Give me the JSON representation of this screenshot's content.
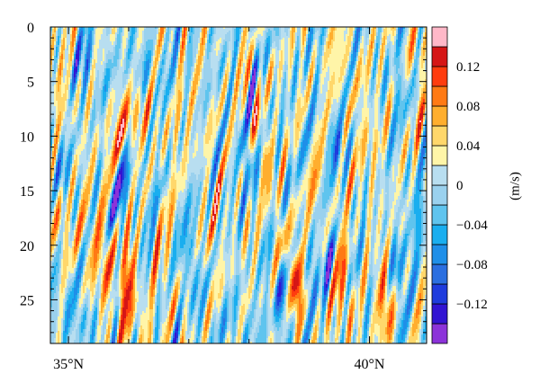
{
  "chart_data": {
    "type": "heatmap",
    "title": "",
    "xlabel": "",
    "ylabel": "",
    "y_inverted": true,
    "xlim": [
      34.7,
      40.95
    ],
    "ylim": [
      0,
      29
    ],
    "x_ticks": [
      {
        "value": 35,
        "label": "35°N"
      },
      {
        "value": 40,
        "label": "40°N"
      }
    ],
    "y_ticks": [
      {
        "value": 0,
        "label": "0"
      },
      {
        "value": 5,
        "label": "5"
      },
      {
        "value": 10,
        "label": "10"
      },
      {
        "value": 15,
        "label": "15"
      },
      {
        "value": 20,
        "label": "20"
      },
      {
        "value": 25,
        "label": "25"
      }
    ],
    "colorbar": {
      "unit_label": "(m/s)",
      "levels": [
        -0.16,
        -0.14,
        -0.12,
        -0.1,
        -0.08,
        -0.06,
        -0.04,
        -0.02,
        0,
        0.02,
        0.04,
        0.06,
        0.08,
        0.1,
        0.12,
        0.14
      ],
      "colors": [
        "#8c33d9",
        "#3214d2",
        "#1f3cdd",
        "#2b6fe0",
        "#1f8fe8",
        "#1aaeef",
        "#5fc4ee",
        "#9ad1ee",
        "#b8def0",
        "#fff5a8",
        "#ffd76b",
        "#ffae2e",
        "#ff7a14",
        "#ff3c0e",
        "#d51616",
        "#ffb8c8"
      ],
      "tick_values": [
        -0.12,
        -0.08,
        -0.04,
        0,
        0.04,
        0.08,
        0.12
      ],
      "tick_labels": [
        "−0.12",
        "−0.08",
        "−0.04",
        "0",
        "0.04",
        "0.08",
        "0.12"
      ]
    },
    "features": [
      {
        "x": 35.95,
        "y": 9.0,
        "amp": 0.135,
        "wx": 0.13,
        "wy": 3.0,
        "tilt": -0.055
      },
      {
        "x": 35.9,
        "y": 12.5,
        "amp": -0.07,
        "wx": 0.1,
        "wy": 4.0,
        "tilt": -0.03
      },
      {
        "x": 35.85,
        "y": 16.0,
        "amp": -0.085,
        "wx": 0.1,
        "wy": 2.6,
        "tilt": -0.02
      },
      {
        "x": 35.95,
        "y": 22.0,
        "amp": 0.07,
        "wx": 0.1,
        "wy": 4.5,
        "tilt": 0.0
      },
      {
        "x": 36.05,
        "y": 25.5,
        "amp": 0.05,
        "wx": 0.12,
        "wy": 3.0,
        "tilt": 0.0
      },
      {
        "x": 35.6,
        "y": 21.0,
        "amp": 0.075,
        "wx": 0.09,
        "wy": 3.2,
        "tilt": 0.0
      },
      {
        "x": 35.35,
        "y": 20.0,
        "amp": 0.045,
        "wx": 0.1,
        "wy": 3.0,
        "tilt": 0.0
      },
      {
        "x": 34.85,
        "y": 18.0,
        "amp": 0.06,
        "wx": 0.1,
        "wy": 2.5,
        "tilt": 0.0
      },
      {
        "x": 34.9,
        "y": 7.0,
        "amp": 0.04,
        "wx": 0.12,
        "wy": 2.5,
        "tilt": -0.02
      },
      {
        "x": 34.85,
        "y": 13.0,
        "amp": -0.05,
        "wx": 0.1,
        "wy": 2.0,
        "tilt": 0.0
      },
      {
        "x": 34.95,
        "y": 25.0,
        "amp": -0.03,
        "wx": 0.12,
        "wy": 3.0,
        "tilt": 0.0
      },
      {
        "x": 35.3,
        "y": 3.5,
        "amp": -0.04,
        "wx": 0.2,
        "wy": 2.0,
        "tilt": 0.0
      },
      {
        "x": 36.3,
        "y": 4.5,
        "amp": -0.045,
        "wx": 0.22,
        "wy": 1.8,
        "tilt": 0.0
      },
      {
        "x": 36.55,
        "y": 8.5,
        "amp": 0.03,
        "wx": 0.14,
        "wy": 2.5,
        "tilt": -0.06
      },
      {
        "x": 37.1,
        "y": 9.5,
        "amp": 0.025,
        "wx": 0.13,
        "wy": 3.0,
        "tilt": -0.04
      },
      {
        "x": 37.05,
        "y": 22.0,
        "amp": -0.06,
        "wx": 0.1,
        "wy": 3.0,
        "tilt": 0.0
      },
      {
        "x": 36.65,
        "y": 23.0,
        "amp": 0.035,
        "wx": 0.1,
        "wy": 3.0,
        "tilt": 0.0
      },
      {
        "x": 37.4,
        "y": 19.0,
        "amp": 0.03,
        "wx": 0.12,
        "wy": 3.0,
        "tilt": 0.0
      },
      {
        "x": 38.0,
        "y": 12.5,
        "amp": -0.04,
        "wx": 0.12,
        "wy": 2.5,
        "tilt": 0.03
      },
      {
        "x": 38.3,
        "y": 13.0,
        "amp": 0.04,
        "wx": 0.1,
        "wy": 4.0,
        "tilt": 0.03
      },
      {
        "x": 38.8,
        "y": 24.0,
        "amp": 0.11,
        "wx": 0.1,
        "wy": 2.4,
        "tilt": 0.0
      },
      {
        "x": 38.55,
        "y": 24.5,
        "amp": -0.08,
        "wx": 0.09,
        "wy": 3.0,
        "tilt": 0.0
      },
      {
        "x": 38.55,
        "y": 20.5,
        "amp": 0.04,
        "wx": 0.1,
        "wy": 2.0,
        "tilt": 0.0
      },
      {
        "x": 39.15,
        "y": 17.0,
        "amp": 0.035,
        "wx": 0.12,
        "wy": 3.0,
        "tilt": 0.0
      },
      {
        "x": 39.05,
        "y": 23.0,
        "amp": -0.05,
        "wx": 0.1,
        "wy": 2.5,
        "tilt": 0.0
      },
      {
        "x": 39.55,
        "y": 24.0,
        "amp": 0.09,
        "wx": 0.1,
        "wy": 3.0,
        "tilt": 0.0
      },
      {
        "x": 39.35,
        "y": 21.5,
        "amp": -0.075,
        "wx": 0.09,
        "wy": 2.5,
        "tilt": 0.0
      },
      {
        "x": 40.25,
        "y": 25.0,
        "amp": 0.09,
        "wx": 0.09,
        "wy": 3.0,
        "tilt": 0.0
      },
      {
        "x": 40.45,
        "y": 22.0,
        "amp": -0.075,
        "wx": 0.09,
        "wy": 2.0,
        "tilt": 0.0
      },
      {
        "x": 40.0,
        "y": 11.0,
        "amp": 0.035,
        "wx": 0.15,
        "wy": 3.0,
        "tilt": 0.0
      },
      {
        "x": 39.6,
        "y": 4.0,
        "amp": 0.025,
        "wx": 0.2,
        "wy": 2.5,
        "tilt": 0.0
      },
      {
        "x": 39.45,
        "y": 11.0,
        "amp": -0.055,
        "wx": 0.1,
        "wy": 1.6,
        "tilt": 0.0
      },
      {
        "x": 40.55,
        "y": 5.5,
        "amp": -0.035,
        "wx": 0.14,
        "wy": 2.0,
        "tilt": 0.0
      },
      {
        "x": 40.7,
        "y": 2.0,
        "amp": 0.025,
        "wx": 0.18,
        "wy": 2.0,
        "tilt": 0.0
      },
      {
        "x": 40.85,
        "y": 9.0,
        "amp": 0.03,
        "wx": 0.1,
        "wy": 3.0,
        "tilt": 0.0
      },
      {
        "x": 40.8,
        "y": 17.0,
        "amp": -0.03,
        "wx": 0.12,
        "wy": 4.0,
        "tilt": 0.0
      },
      {
        "x": 37.8,
        "y": 27.5,
        "amp": -0.03,
        "wx": 0.2,
        "wy": 1.5,
        "tilt": 0.0
      },
      {
        "x": 35.3,
        "y": 27.0,
        "amp": -0.035,
        "wx": 0.15,
        "wy": 1.5,
        "tilt": 0.0
      }
    ]
  }
}
